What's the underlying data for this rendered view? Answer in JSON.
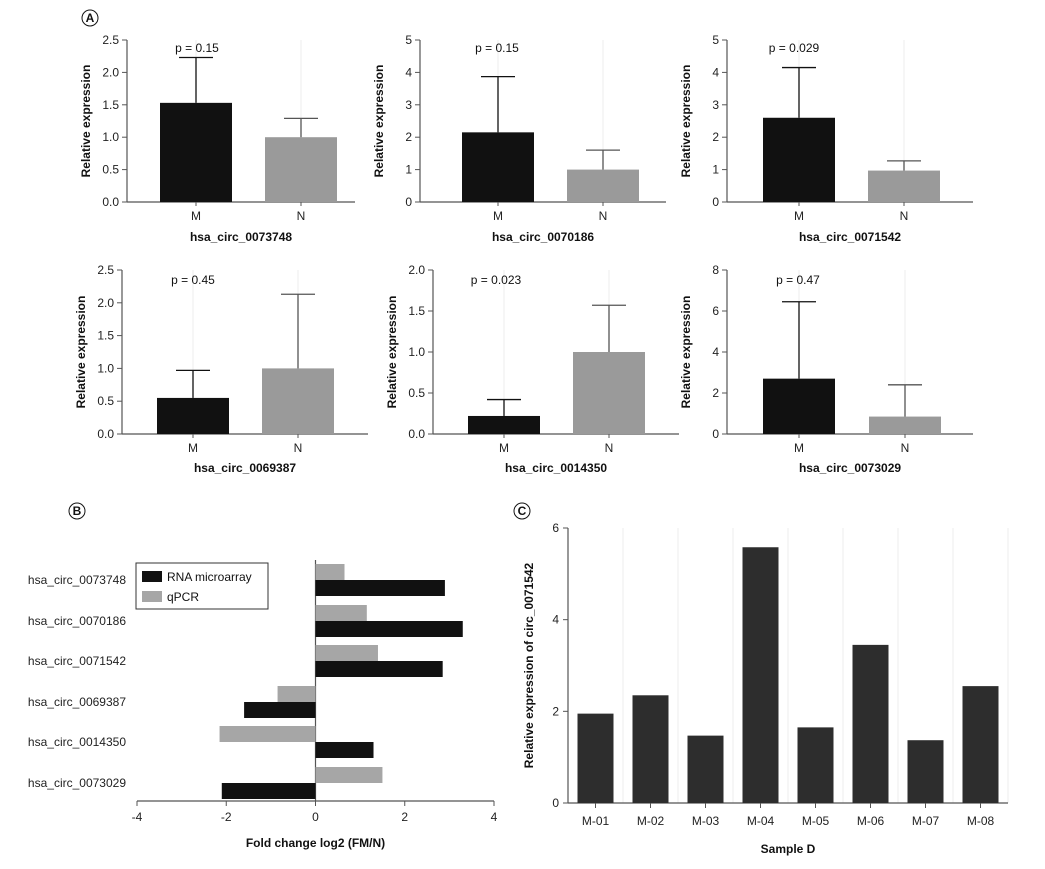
{
  "panels": {
    "A": "A",
    "B": "B",
    "C": "C"
  },
  "colors": {
    "M": "#111111",
    "N": "#9a9a9a",
    "microarray": "#111111",
    "qpcr": "#a6a6a6",
    "sampleD": "#2d2d2d"
  },
  "chart_data": [
    {
      "id": "a1",
      "type": "bar",
      "title": "hsa_circ_0073748",
      "ylabel": "Relative expression",
      "p_label": "p = 0.15",
      "categories": [
        "M",
        "N"
      ],
      "values": [
        1.53,
        1.0
      ],
      "errors": [
        0.7,
        0.29
      ],
      "ylim": [
        0,
        2.5
      ],
      "ytick_labels": [
        "0.0",
        "0.5",
        "1.0",
        "1.5",
        "2.0",
        "2.5"
      ]
    },
    {
      "id": "a2",
      "type": "bar",
      "title": "hsa_circ_0070186",
      "ylabel": "Relative expression",
      "p_label": "p = 0.15",
      "categories": [
        "M",
        "N"
      ],
      "values": [
        2.15,
        1.0
      ],
      "errors": [
        1.72,
        0.6
      ],
      "ylim": [
        0,
        5
      ],
      "ytick_labels": [
        "0",
        "1",
        "2",
        "3",
        "4",
        "5"
      ]
    },
    {
      "id": "a3",
      "type": "bar",
      "title": "hsa_circ_0071542",
      "ylabel": "Relative expression",
      "p_label": "p = 0.029",
      "categories": [
        "M",
        "N"
      ],
      "values": [
        2.6,
        0.97
      ],
      "errors": [
        1.55,
        0.3
      ],
      "ylim": [
        0,
        5
      ],
      "ytick_labels": [
        "0",
        "1",
        "2",
        "3",
        "4",
        "5"
      ]
    },
    {
      "id": "a4",
      "type": "bar",
      "title": "hsa_circ_0069387",
      "ylabel": "Relative expression",
      "p_label": "p = 0.45",
      "categories": [
        "M",
        "N"
      ],
      "values": [
        0.55,
        1.0
      ],
      "errors": [
        0.42,
        1.13
      ],
      "ylim": [
        0,
        2.5
      ],
      "ytick_labels": [
        "0.0",
        "0.5",
        "1.0",
        "1.5",
        "2.0",
        "2.5"
      ]
    },
    {
      "id": "a5",
      "type": "bar",
      "title": "hsa_circ_0014350",
      "ylabel": "Relative expression",
      "p_label": "p = 0.023",
      "categories": [
        "M",
        "N"
      ],
      "values": [
        0.22,
        1.0
      ],
      "errors": [
        0.2,
        0.57
      ],
      "ylim": [
        0,
        2.0
      ],
      "ytick_labels": [
        "0.0",
        "0.5",
        "1.0",
        "1.5",
        "2.0"
      ]
    },
    {
      "id": "a6",
      "type": "bar",
      "title": "hsa_circ_0073029",
      "ylabel": "Relative expression",
      "p_label": "p = 0.47",
      "categories": [
        "M",
        "N"
      ],
      "values": [
        2.7,
        0.85
      ],
      "errors": [
        3.75,
        1.55
      ],
      "ylim": [
        0,
        8
      ],
      "ytick_labels": [
        "0",
        "2",
        "4",
        "6",
        "8"
      ]
    },
    {
      "id": "b",
      "type": "bar",
      "orientation": "horizontal",
      "xlabel": "Fold change log2 (FM/N)",
      "categories": [
        "hsa_circ_0073748",
        "hsa_circ_0070186",
        "hsa_circ_0071542",
        "hsa_circ_0069387",
        "hsa_circ_0014350",
        "hsa_circ_0073029"
      ],
      "series": [
        {
          "name": "RNA microarray",
          "values": [
            2.9,
            3.3,
            2.85,
            -1.6,
            1.3,
            -2.1
          ]
        },
        {
          "name": "qPCR",
          "values": [
            0.65,
            1.15,
            1.4,
            -0.85,
            -2.15,
            1.5
          ]
        }
      ],
      "xlim": [
        -4,
        4
      ],
      "xtick_labels": [
        "-4",
        "-2",
        "0",
        "2",
        "4"
      ],
      "legend": "top-left"
    },
    {
      "id": "c",
      "type": "bar",
      "xlabel": "Sample D",
      "ylabel": "Relative expression of circ_0071542",
      "categories": [
        "M-01",
        "M-02",
        "M-03",
        "M-04",
        "M-05",
        "M-06",
        "M-07",
        "M-08"
      ],
      "values": [
        1.95,
        2.35,
        1.47,
        5.58,
        1.65,
        3.45,
        1.37,
        2.55
      ],
      "ylim": [
        0,
        6
      ],
      "ytick_labels": [
        "0",
        "2",
        "4",
        "6"
      ]
    }
  ]
}
